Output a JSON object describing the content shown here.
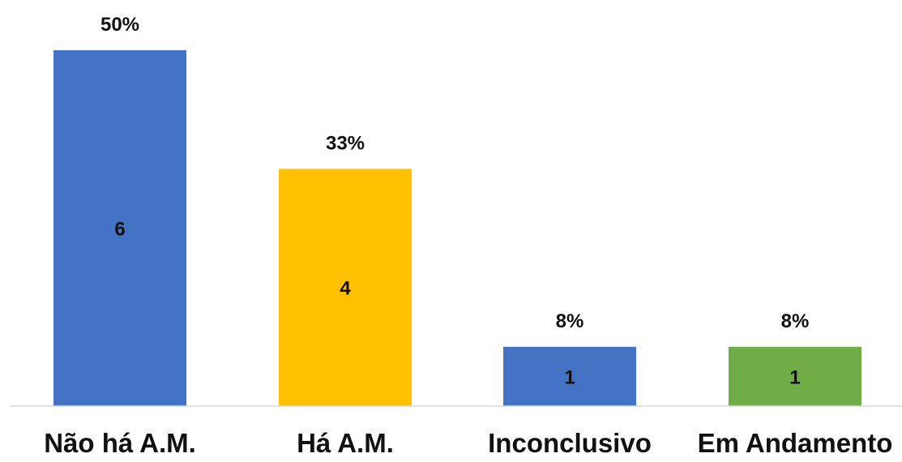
{
  "chart_data": {
    "type": "bar",
    "title": "",
    "xlabel": "",
    "ylabel": "",
    "grid": false,
    "categories": [
      "Não há A.M.",
      "Há A.M.",
      "Inconclusivo",
      "Em Andamento"
    ],
    "values": [
      6,
      4,
      1,
      1
    ],
    "percent_labels": [
      "50%",
      "33%",
      "8%",
      "8%"
    ],
    "count_labels": [
      "6",
      "4",
      "1",
      "1"
    ],
    "colors": [
      "#4472C4",
      "#FFC000",
      "#4472C4",
      "#70AD47"
    ],
    "ylim": [
      0,
      6
    ]
  }
}
